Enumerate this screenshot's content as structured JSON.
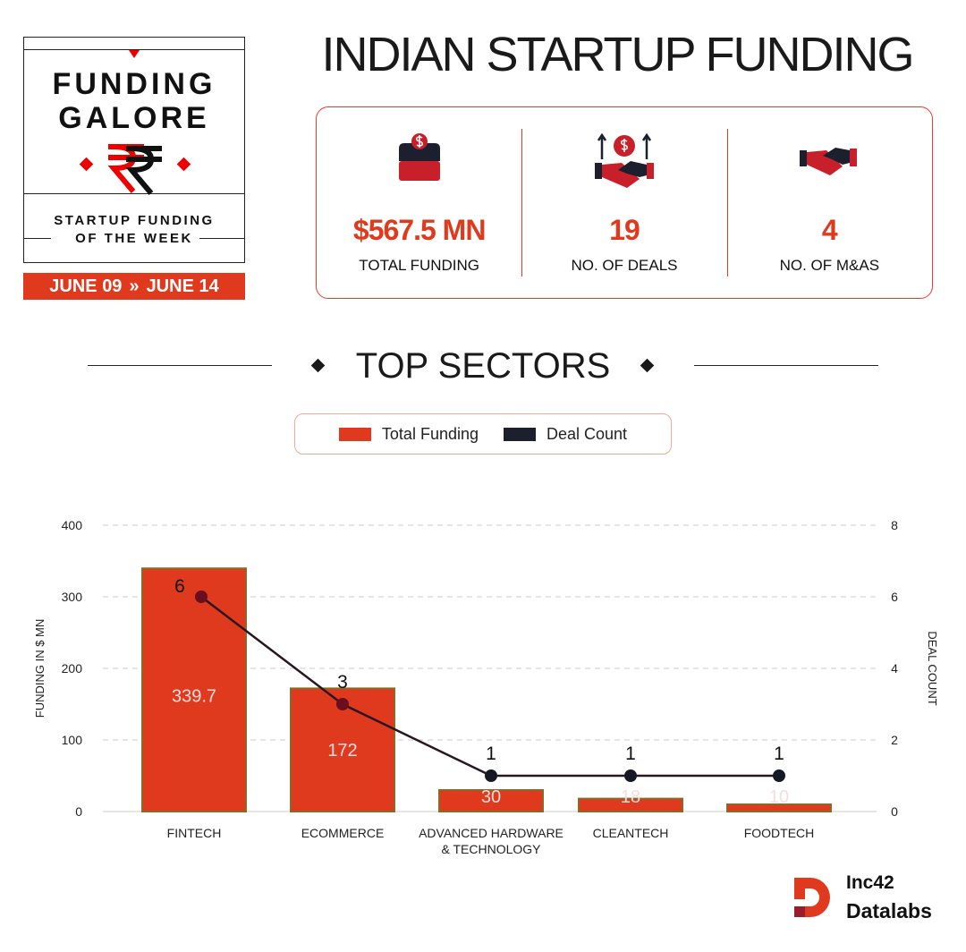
{
  "badge": {
    "line1": "FUNDING",
    "line2": "GALORE",
    "currency_icon": "rupee-icon",
    "subtitle1": "STARTUP FUNDING",
    "subtitle2": "OF THE WEEK",
    "date_from": "JUNE 09",
    "date_to": "JUNE 14"
  },
  "title": "INDIAN STARTUP FUNDING",
  "stats": [
    {
      "icon": "money-box-icon",
      "value": "$567.5 MN",
      "label": "TOTAL FUNDING"
    },
    {
      "icon": "handshake-growth-icon",
      "value": "19",
      "label": "NO. OF DEALS"
    },
    {
      "icon": "handshake-icon",
      "value": "4",
      "label": "NO. OF M&AS"
    }
  ],
  "section_title": "TOP SECTORS",
  "colors": {
    "accent": "#e03a1e",
    "dark": "#1b1f2e"
  },
  "chart_data": {
    "type": "bar",
    "categories": [
      "FINTECH",
      "ECOMMERCE",
      "ADVANCED HARDWARE & TECHNOLOGY",
      "CLEANTECH",
      "FOODTECH"
    ],
    "category_lines": [
      [
        "FINTECH"
      ],
      [
        "ECOMMERCE"
      ],
      [
        "ADVANCED HARDWARE",
        "& TECHNOLOGY"
      ],
      [
        "CLEANTECH"
      ],
      [
        "FOODTECH"
      ]
    ],
    "series": [
      {
        "name": "Total Funding",
        "type": "bar",
        "axis": "left",
        "values": [
          339.7,
          172,
          30,
          18,
          10
        ]
      },
      {
        "name": "Deal Count",
        "type": "line",
        "axis": "right",
        "values": [
          6,
          3,
          1,
          1,
          1
        ]
      }
    ],
    "ylabel": "FUNDING IN $ MN",
    "ylim": [
      0,
      400
    ],
    "yticks": [
      0,
      100,
      200,
      300,
      400
    ],
    "y2label": "DEAL COUNT",
    "y2lim": [
      0,
      8
    ],
    "y2ticks": [
      0,
      2,
      4,
      6,
      8
    ],
    "grid": true,
    "legend": "top-center"
  },
  "footer": {
    "brand1": "Inc42",
    "brand2": "Datalabs"
  }
}
